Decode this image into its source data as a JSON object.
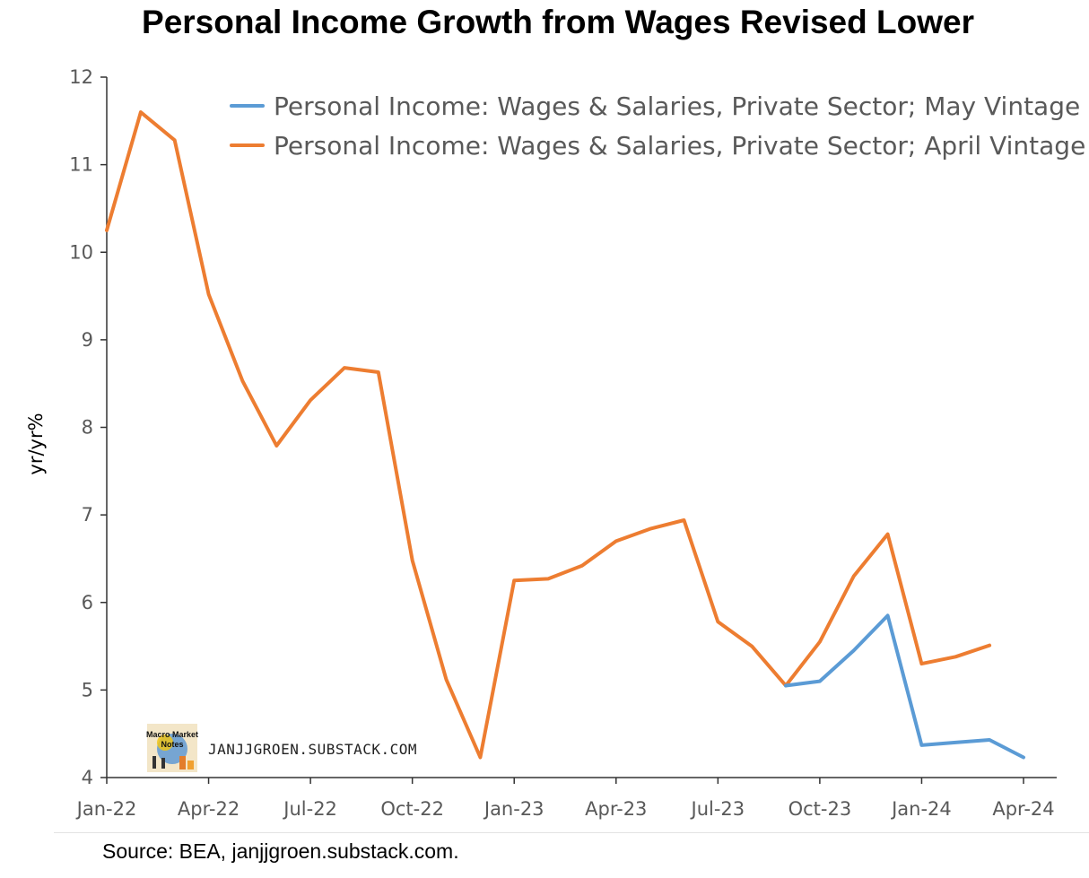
{
  "chart_data": {
    "type": "line",
    "title": "Personal Income Growth from Wages Revised Lower",
    "ylabel": "yr/yr%",
    "xlabel": "",
    "ylim": [
      4,
      12
    ],
    "yticks": [
      4,
      5,
      6,
      7,
      8,
      9,
      10,
      11,
      12
    ],
    "x": [
      "Jan-22",
      "Feb-22",
      "Mar-22",
      "Apr-22",
      "May-22",
      "Jun-22",
      "Jul-22",
      "Aug-22",
      "Sep-22",
      "Oct-22",
      "Nov-22",
      "Dec-22",
      "Jan-23",
      "Feb-23",
      "Mar-23",
      "Apr-23",
      "May-23",
      "Jun-23",
      "Jul-23",
      "Aug-23",
      "Sep-23",
      "Oct-23",
      "Nov-23",
      "Dec-23",
      "Jan-24",
      "Feb-24",
      "Mar-24",
      "Apr-24"
    ],
    "xticks": [
      "Jan-22",
      "Apr-22",
      "Jul-22",
      "Oct-22",
      "Jan-23",
      "Apr-23",
      "Jul-23",
      "Oct-23",
      "Jan-24",
      "Apr-24"
    ],
    "grid": false,
    "legend_position": "top-right",
    "series": [
      {
        "name": "Personal Income: Wages & Salaries, Private Sector; May Vintage",
        "color": "#5b9bd5",
        "values": [
          null,
          null,
          null,
          null,
          null,
          null,
          null,
          null,
          null,
          null,
          null,
          null,
          null,
          null,
          null,
          null,
          null,
          null,
          null,
          null,
          5.05,
          5.1,
          5.45,
          5.85,
          4.37,
          4.4,
          4.43,
          4.23
        ]
      },
      {
        "name": "Personal Income: Wages & Salaries, Private Sector; April Vintage",
        "color": "#ed7d31",
        "values": [
          10.25,
          11.6,
          11.28,
          9.52,
          8.53,
          7.79,
          8.31,
          8.68,
          8.63,
          6.48,
          5.12,
          4.23,
          6.25,
          6.27,
          6.42,
          6.7,
          6.84,
          6.94,
          5.78,
          5.5,
          5.05,
          5.55,
          6.3,
          6.78,
          5.3,
          5.38,
          5.51,
          null
        ]
      }
    ]
  },
  "watermark": {
    "text": "JANJJGROEN.SUBSTACK.COM",
    "logo_text_line1": "Macro Market",
    "logo_text_line2": "Notes"
  },
  "source": "Source: BEA, janjjgroen.substack.com."
}
